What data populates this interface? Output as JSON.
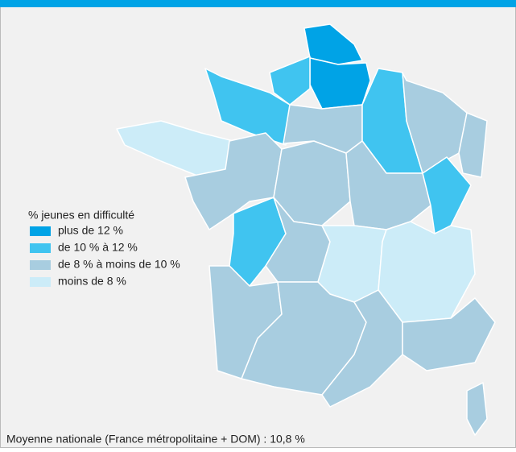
{
  "legend": {
    "title": "% jeunes en difficulté",
    "items": [
      {
        "label": "plus de 12 %",
        "color": "#00a3e6"
      },
      {
        "label": "de 10 % à 12 %",
        "color": "#40c4f0"
      },
      {
        "label": "de 8 % à moins de 10 %",
        "color": "#a8cde0"
      },
      {
        "label": "moins de 8 %",
        "color": "#ccecf8"
      }
    ]
  },
  "footer": "Moyenne nationale (France métropolitaine + DOM) : 10,8 %"
}
